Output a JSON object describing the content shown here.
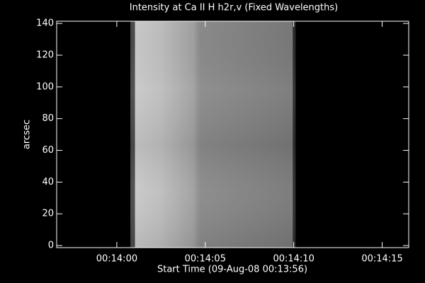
{
  "chart_data": {
    "type": "image",
    "title": "Intensity at Ca II H h2r,v (Fixed Wavelengths)",
    "x_label": "Start Time (09-Aug-08 00:13:56)",
    "y_label": "arcsec",
    "xlim": [
      0.6,
      20.5
    ],
    "xticks": [
      {
        "value": 4,
        "label": "00:14:00"
      },
      {
        "value": 9,
        "label": "00:14:05"
      },
      {
        "value": 14,
        "label": "00:14:10"
      },
      {
        "value": 19,
        "label": "00:14:15"
      }
    ],
    "ylim": [
      -1.3,
      141.4
    ],
    "yticks": [
      0,
      20,
      40,
      60,
      80,
      100,
      120,
      140
    ],
    "image_xlim": [
      4.77,
      14.11
    ],
    "image_ylim": [
      -1.3,
      141.4
    ]
  }
}
